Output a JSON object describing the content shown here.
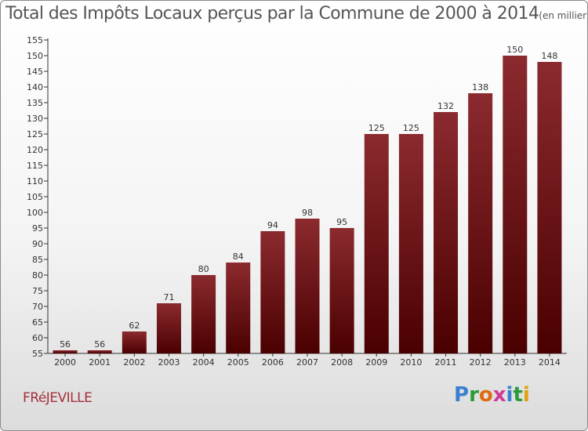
{
  "chart_data": {
    "type": "bar",
    "title": "Total des Impôts Locaux perçus par la Commune de 2000 à 2014",
    "unit_note": "(en milliers d'€)",
    "categories": [
      "2000",
      "2001",
      "2002",
      "2003",
      "2004",
      "2005",
      "2006",
      "2007",
      "2008",
      "2009",
      "2010",
      "2011",
      "2012",
      "2013",
      "2014"
    ],
    "values": [
      56,
      56,
      62,
      71,
      80,
      84,
      94,
      98,
      95,
      125,
      125,
      132,
      138,
      150,
      148
    ],
    "ylim": [
      55,
      155
    ],
    "ytick_step": 5,
    "xlabel": "",
    "ylabel": "",
    "grid": false,
    "bar_color_top": "#8b2a2f",
    "bar_color_bottom": "#4a0000"
  },
  "commune_name": "FRéJEVILLE",
  "brand": {
    "letters": [
      "P",
      "r",
      "o",
      "x",
      "i",
      "t",
      "i"
    ],
    "colors": [
      "#3a7fd0",
      "#2b9a3a",
      "#e06a10",
      "#d03a9a",
      "#3a7fd0",
      "#2b9a3a",
      "#e0a010"
    ]
  }
}
